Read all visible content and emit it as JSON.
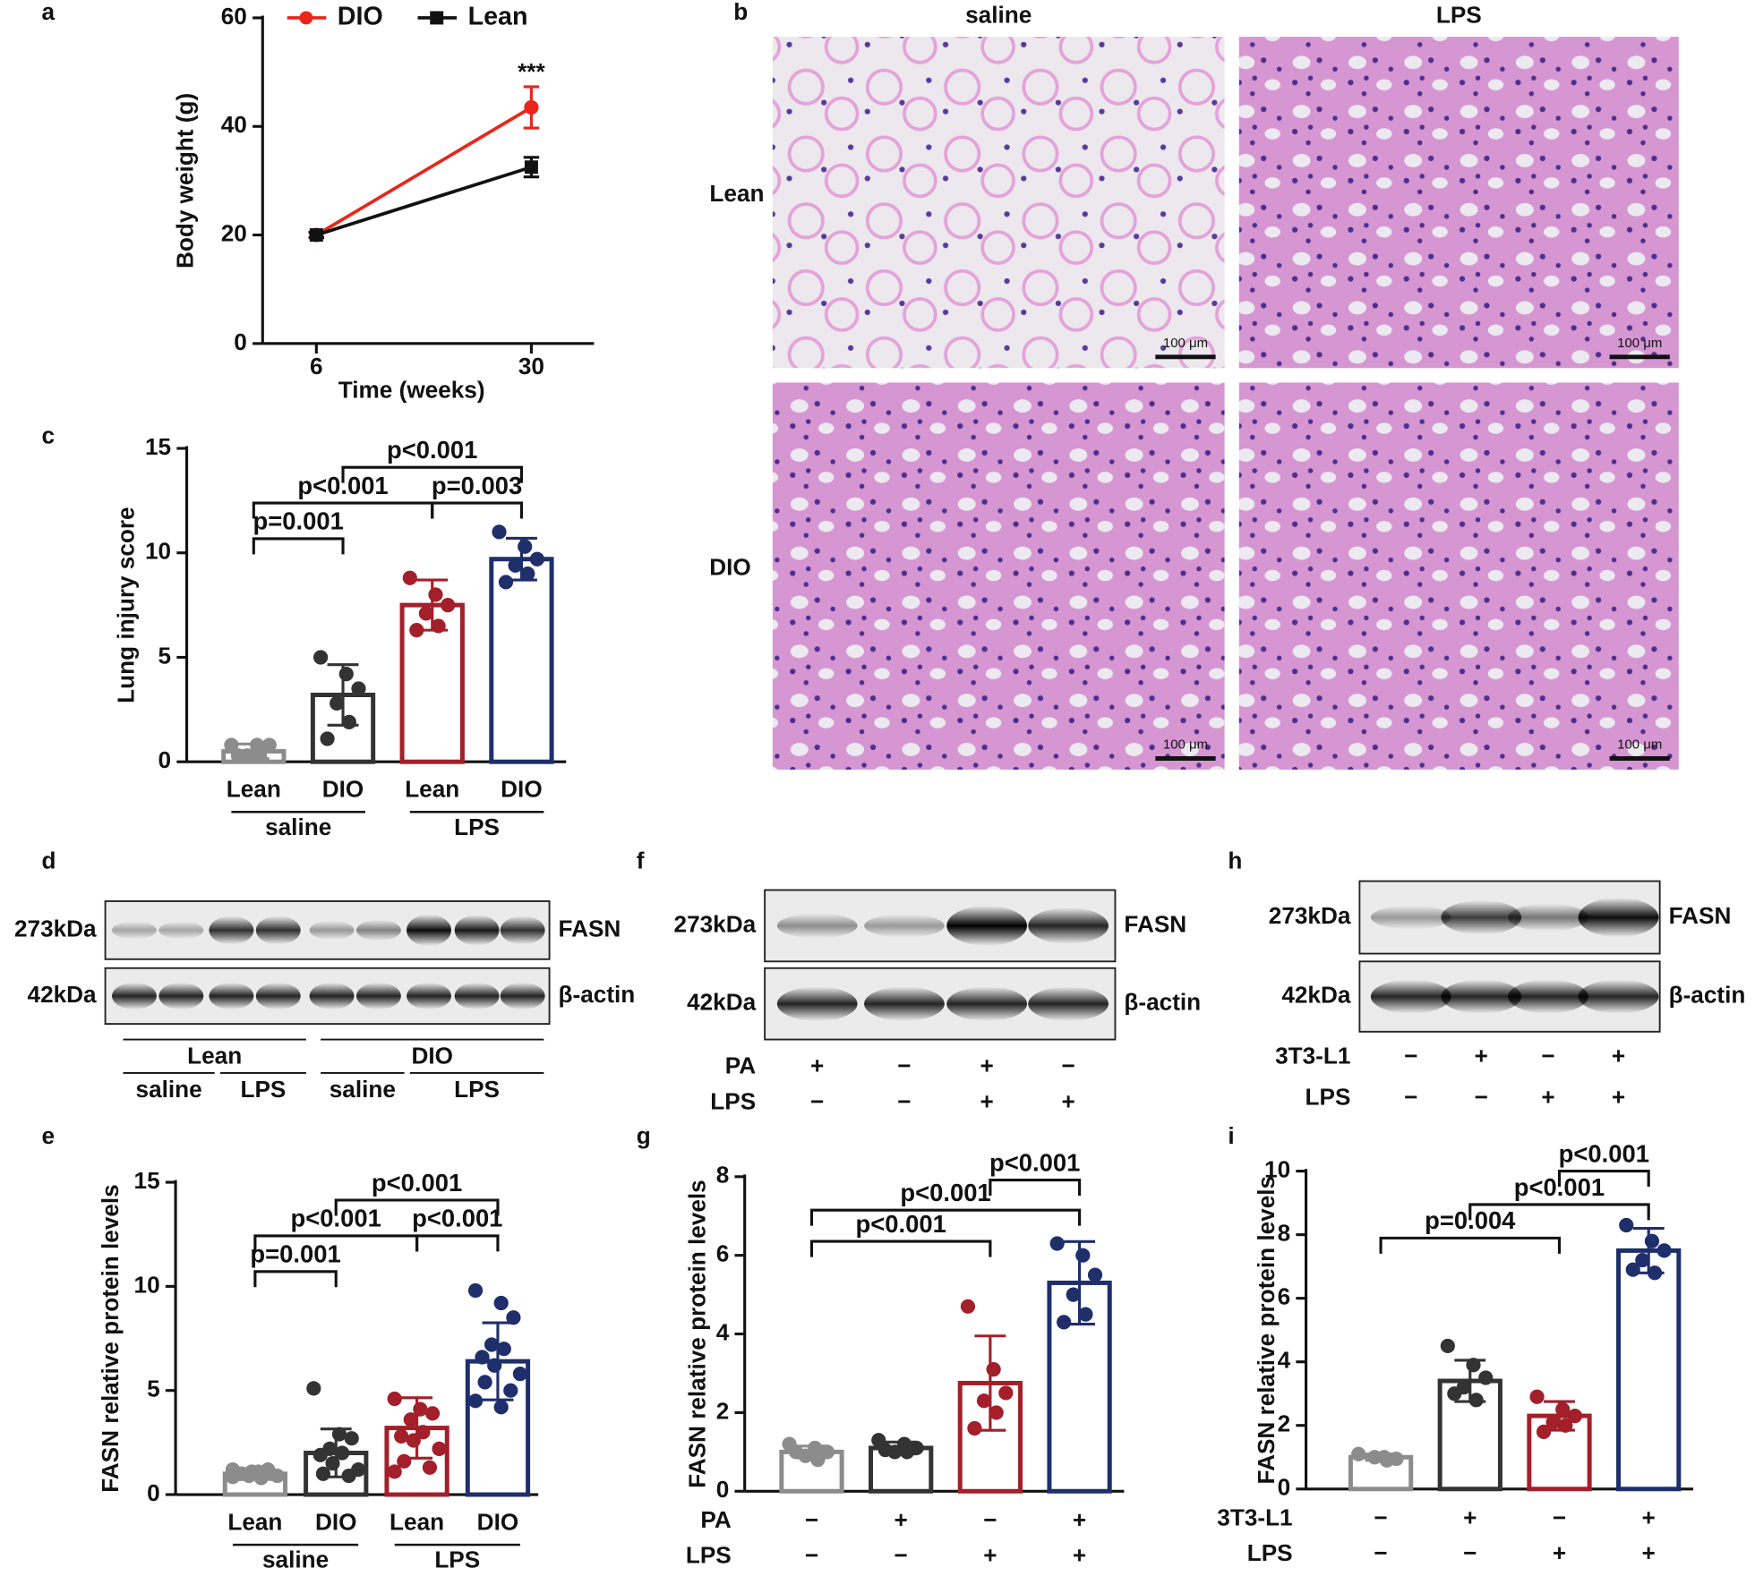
{
  "chart_data": [
    {
      "type": "line",
      "panel": "a",
      "xlabel": "Time (weeks)",
      "ylabel": "Body weight (g)",
      "x": [
        6,
        30
      ],
      "xlim": [
        0,
        37
      ],
      "xticks": [
        6,
        30
      ],
      "ylim": [
        0,
        60
      ],
      "yticks": [
        0,
        20,
        40,
        60
      ],
      "series": [
        {
          "name": "DIO",
          "color": "#e8261c",
          "marker": "circle",
          "values": [
            20,
            43.5
          ],
          "errors": [
            0.5,
            3.8
          ]
        },
        {
          "name": "Lean",
          "color": "#111111",
          "marker": "square",
          "values": [
            20,
            32.5
          ],
          "errors": [
            0.5,
            1.8
          ]
        }
      ],
      "annotation": "***",
      "legend": "top"
    },
    {
      "type": "bar",
      "panel": "c",
      "ylabel": "Lung injury score",
      "ylim": [
        0,
        15
      ],
      "yticks": [
        0,
        5,
        10,
        15
      ],
      "categories": [
        "Lean",
        "DIO",
        "Lean",
        "DIO"
      ],
      "group_labels": [
        "saline",
        "LPS"
      ],
      "values": [
        0.5,
        3.2,
        7.5,
        9.7
      ],
      "errors": [
        0.35,
        1.45,
        1.2,
        1.0
      ],
      "colors": [
        "#8c8c8c",
        "#333333",
        "#a31f2a",
        "#1f2f6b"
      ],
      "points": [
        [
          0.8,
          0.8,
          0.8,
          0.3,
          0.3,
          0.3
        ],
        [
          5.0,
          4.2,
          3.5,
          2.8,
          1.9,
          1.1
        ],
        [
          8.8,
          8.0,
          7.5,
          7.1,
          6.5,
          6.3
        ],
        [
          11.0,
          10.3,
          9.7,
          9.4,
          9.0,
          8.6
        ]
      ],
      "comparisons": [
        {
          "label": "p=0.001",
          "from": 0,
          "to": 1
        },
        {
          "label": "p<0.001",
          "from": 0,
          "to": 2
        },
        {
          "label": "p=0.003",
          "from": 2,
          "to": 3
        },
        {
          "label": "p<0.001",
          "from": 1,
          "to": 3
        }
      ]
    },
    {
      "type": "bar",
      "panel": "e",
      "ylabel": "FASN relative protein levels",
      "ylim": [
        0,
        15
      ],
      "yticks": [
        0,
        5,
        10,
        15
      ],
      "categories": [
        "Lean",
        "DIO",
        "Lean",
        "DIO"
      ],
      "group_labels": [
        "saline",
        "LPS"
      ],
      "values": [
        1.0,
        2.0,
        3.2,
        6.4
      ],
      "errors": [
        0.15,
        1.15,
        1.45,
        1.85
      ],
      "colors": [
        "#8c8c8c",
        "#333333",
        "#a31f2a",
        "#1f2f6b"
      ],
      "points": [
        [
          1.2,
          1.1,
          1.0,
          0.9,
          0.8,
          1.0,
          1.1,
          0.9,
          1.0,
          1.2,
          0.85,
          1.0
        ],
        [
          5.1,
          2.9,
          2.7,
          2.2,
          2.0,
          1.9,
          1.5,
          1.2,
          1.0,
          0.9
        ],
        [
          4.6,
          4.1,
          3.9,
          3.6,
          3.0,
          2.8,
          2.6,
          2.2,
          1.6,
          1.3,
          1.1
        ],
        [
          9.8,
          9.2,
          8.5,
          7.2,
          7.0,
          6.6,
          6.2,
          5.8,
          5.4,
          5.0,
          4.5,
          4.2
        ]
      ],
      "comparisons": [
        {
          "label": "p=0.001",
          "from": 0,
          "to": 1
        },
        {
          "label": "p<0.001",
          "from": 0,
          "to": 2
        },
        {
          "label": "p<0.001",
          "from": 2,
          "to": 3
        },
        {
          "label": "p<0.001",
          "from": 1,
          "to": 3
        }
      ]
    },
    {
      "type": "bar",
      "panel": "g",
      "ylabel": "FASN relative protein levels",
      "ylim": [
        0,
        8
      ],
      "yticks": [
        0,
        2,
        4,
        6,
        8
      ],
      "conditions": [
        {
          "name": "PA",
          "values": [
            "−",
            "+",
            "−",
            "+"
          ]
        },
        {
          "name": "LPS",
          "values": [
            "−",
            "−",
            "+",
            "+"
          ]
        }
      ],
      "values": [
        1.0,
        1.1,
        2.75,
        5.3
      ],
      "errors": [
        0.15,
        0.15,
        1.2,
        1.05
      ],
      "colors": [
        "#8c8c8c",
        "#333333",
        "#a31f2a",
        "#1f2f6b"
      ],
      "points": [
        [
          1.2,
          1.1,
          1.0,
          0.9,
          0.8,
          1.0
        ],
        [
          1.3,
          1.2,
          1.1,
          1.0,
          1.0,
          1.05
        ],
        [
          4.7,
          3.1,
          2.5,
          2.3,
          2.0,
          1.6
        ],
        [
          6.3,
          6.0,
          5.5,
          5.0,
          4.5,
          4.3
        ]
      ],
      "comparisons": [
        {
          "label": "p<0.001",
          "from": 0,
          "to": 2
        },
        {
          "label": "p<0.001",
          "from": 0,
          "to": 3
        },
        {
          "label": "p<0.001",
          "from": 2,
          "to": 3
        }
      ]
    },
    {
      "type": "bar",
      "panel": "i",
      "ylabel": "FASN relative protein levels",
      "ylim": [
        0,
        10
      ],
      "yticks": [
        0,
        2,
        4,
        6,
        8,
        10
      ],
      "conditions": [
        {
          "name": "3T3-L1",
          "values": [
            "−",
            "+",
            "−",
            "+"
          ]
        },
        {
          "name": "LPS",
          "values": [
            "−",
            "−",
            "+",
            "+"
          ]
        }
      ],
      "values": [
        1.0,
        3.4,
        2.3,
        7.5
      ],
      "errors": [
        0.1,
        0.65,
        0.45,
        0.7
      ],
      "colors": [
        "#8c8c8c",
        "#333333",
        "#a31f2a",
        "#1f2f6b"
      ],
      "points": [
        [
          1.1,
          1.0,
          0.95,
          1.0,
          0.9
        ],
        [
          4.5,
          3.9,
          3.5,
          3.2,
          2.8,
          3.0
        ],
        [
          2.9,
          2.5,
          2.3,
          2.1,
          2.0,
          1.8
        ],
        [
          8.3,
          7.8,
          7.5,
          7.2,
          6.8,
          6.9
        ]
      ],
      "comparisons": [
        {
          "label": "p=0.004",
          "from": 0,
          "to": 2
        },
        {
          "label": "p<0.001",
          "from": 1,
          "to": 3
        },
        {
          "label": "p<0.001",
          "from": 2,
          "to": 3
        }
      ]
    }
  ],
  "histology": {
    "panel": "b",
    "columns": [
      "saline",
      "LPS"
    ],
    "rows": [
      "Lean",
      "DIO"
    ],
    "scale_bars": [
      "100 μm",
      "100 μm",
      "100 μm",
      "100 μm"
    ]
  },
  "blots": [
    {
      "panel": "d",
      "markers": [
        "273kDa",
        "42kDa"
      ],
      "proteins": [
        "FASN",
        "β-actin"
      ],
      "groups": [
        "Lean",
        "DIO"
      ],
      "treatments": [
        "saline",
        "LPS",
        "saline",
        "LPS"
      ]
    },
    {
      "panel": "f",
      "markers": [
        "273kDa",
        "42kDa"
      ],
      "proteins": [
        "FASN",
        "β-actin"
      ],
      "conditions": [
        {
          "name": "PA",
          "values": [
            "+",
            "−",
            "+",
            "−"
          ]
        },
        {
          "name": "LPS",
          "values": [
            "−",
            "−",
            "+",
            "+"
          ]
        }
      ]
    },
    {
      "panel": "h",
      "markers": [
        "273kDa",
        "42kDa"
      ],
      "proteins": [
        "FASN",
        "β-actin"
      ],
      "conditions": [
        {
          "name": "3T3-L1",
          "values": [
            "−",
            "+",
            "−",
            "+"
          ]
        },
        {
          "name": "LPS",
          "values": [
            "−",
            "−",
            "+",
            "+"
          ]
        }
      ]
    }
  ]
}
